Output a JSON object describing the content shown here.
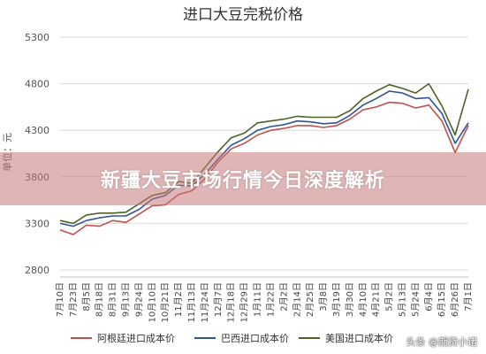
{
  "chart_data": {
    "type": "line",
    "title": "进口大豆完税价格",
    "ylabel": "单位：元",
    "ylim": [
      2800,
      5300
    ],
    "yticks": [
      2800,
      3300,
      3800,
      4300,
      4800,
      5300
    ],
    "grid": true,
    "legend_position": "bottom",
    "categories": [
      "7月10日",
      "7月23日",
      "8月5日",
      "8月18日",
      "8月31日",
      "9月13日",
      "9月24日",
      "10月10日",
      "10月21日",
      "11月2日",
      "11月13日",
      "11月24日",
      "12月7日",
      "12月18日",
      "12月29日",
      "1月11日",
      "1月22日",
      "2月2日",
      "2月14日",
      "2月25日",
      "3月8日",
      "3月19日",
      "3月30日",
      "4月10日",
      "4月21日",
      "5月2日",
      "5月13日",
      "5月24日",
      "6月4日",
      "6月15日",
      "6月26日",
      "7月1日"
    ],
    "series": [
      {
        "name": "阿根廷进口成本价",
        "color": "#c0504d",
        "values": [
          3230,
          3180,
          3280,
          3270,
          3330,
          3310,
          3400,
          3490,
          3500,
          3610,
          3650,
          3780,
          3960,
          4100,
          4160,
          4250,
          4300,
          4320,
          4350,
          4350,
          4330,
          4350,
          4420,
          4520,
          4550,
          4600,
          4590,
          4540,
          4570,
          4400,
          4060,
          4350
        ]
      },
      {
        "name": "巴西进口成本价",
        "color": "#2f5597",
        "values": [
          3300,
          3270,
          3330,
          3360,
          3380,
          3380,
          3450,
          3560,
          3600,
          3710,
          3700,
          3830,
          3990,
          4140,
          4210,
          4300,
          4340,
          4360,
          4400,
          4390,
          4370,
          4380,
          4460,
          4570,
          4640,
          4720,
          4700,
          4640,
          4650,
          4480,
          4160,
          4380
        ]
      },
      {
        "name": "美国进口成本价",
        "color": "#4f6228",
        "values": [
          3330,
          3300,
          3390,
          3410,
          3410,
          3420,
          3510,
          3600,
          3630,
          3750,
          3730,
          3900,
          4070,
          4220,
          4270,
          4380,
          4400,
          4420,
          4450,
          4440,
          4440,
          4440,
          4510,
          4640,
          4720,
          4790,
          4750,
          4700,
          4800,
          4560,
          4250,
          4740
        ]
      }
    ]
  },
  "overlay": {
    "banner_text": "新疆大豆市场行情今日深度解析",
    "watermark": "头条 @期货小诸"
  }
}
